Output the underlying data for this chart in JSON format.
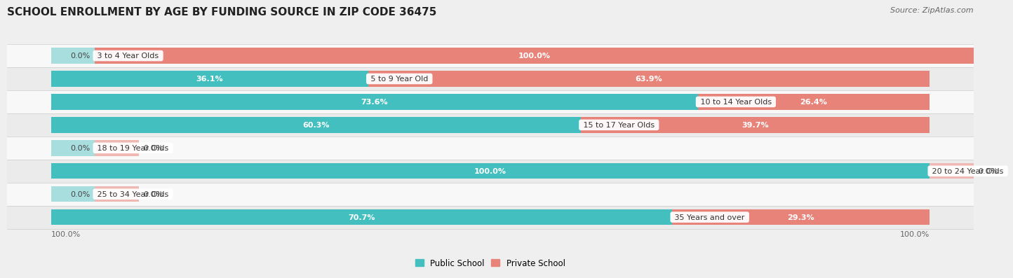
{
  "title": "SCHOOL ENROLLMENT BY AGE BY FUNDING SOURCE IN ZIP CODE 36475",
  "source": "Source: ZipAtlas.com",
  "categories": [
    "3 to 4 Year Olds",
    "5 to 9 Year Old",
    "10 to 14 Year Olds",
    "15 to 17 Year Olds",
    "18 to 19 Year Olds",
    "20 to 24 Year Olds",
    "25 to 34 Year Olds",
    "35 Years and over"
  ],
  "public_pct": [
    0.0,
    36.1,
    73.6,
    60.3,
    0.0,
    100.0,
    0.0,
    70.7
  ],
  "private_pct": [
    100.0,
    63.9,
    26.4,
    39.7,
    0.0,
    0.0,
    0.0,
    29.3
  ],
  "public_color": "#43bfc0",
  "private_color": "#e8837a",
  "public_stub_color": "#a8dede",
  "private_stub_color": "#f0b8b2",
  "bg_color": "#efefef",
  "row_bg_even": "#f8f8f8",
  "row_bg_odd": "#ebebeb",
  "title_fontsize": 11,
  "bar_label_fontsize": 8,
  "cat_label_fontsize": 8,
  "legend_fontsize": 8.5,
  "source_fontsize": 8,
  "stub_pct": 5.0,
  "xlim_left": -5,
  "xlim_right": 105
}
